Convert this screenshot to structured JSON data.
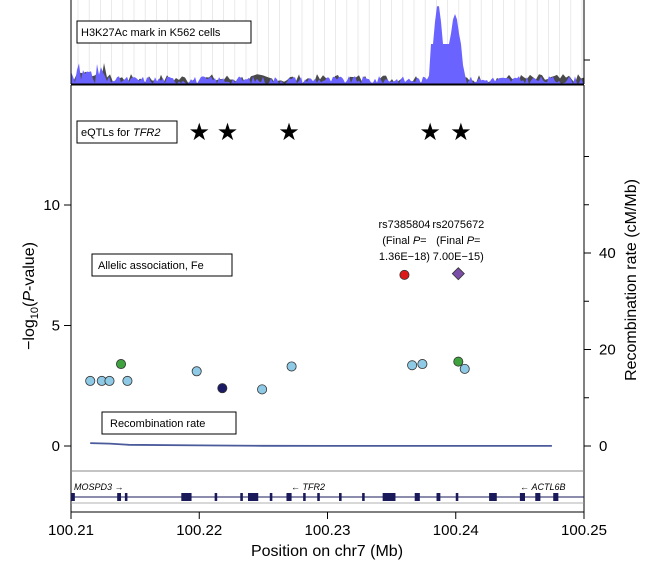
{
  "chart_data": {
    "type": "scatter",
    "xlabel": "Position on chr7 (Mb)",
    "ylabel": [
      "−log",
      "10",
      "(",
      "P",
      "-value)"
    ],
    "y2label": "Recombination rate (cM/Mb)",
    "xlim": [
      100.21,
      100.25
    ],
    "ylim": [
      -1,
      15
    ],
    "y2lim": [
      -5,
      60
    ],
    "x_ticks": [
      "100.21",
      "100.22",
      "100.23",
      "100.24",
      "100.25"
    ],
    "y_ticks": [
      "0",
      "5",
      "10"
    ],
    "y2_ticks": [
      "0",
      "20",
      "40"
    ],
    "panels": {
      "chipseq_label": "H3K27Ac mark in K562 cells",
      "eqtl_label_prefix": "eQTLs for ",
      "eqtl_gene": "TFR2",
      "association_label": "Allelic association, Fe",
      "recombination_label": "Recombination rate"
    },
    "eqtl_positions": [
      100.22,
      100.2222,
      100.227,
      100.238,
      100.2404
    ],
    "series": [
      {
        "name": "SNPs",
        "points": [
          {
            "x": 100.2115,
            "y": 2.7,
            "color": "#8ecae6"
          },
          {
            "x": 100.2124,
            "y": 2.7,
            "color": "#8ecae6"
          },
          {
            "x": 100.213,
            "y": 2.7,
            "color": "#8ecae6"
          },
          {
            "x": 100.2139,
            "y": 3.4,
            "color": "#3ea33e"
          },
          {
            "x": 100.2144,
            "y": 2.7,
            "color": "#8ecae6"
          },
          {
            "x": 100.2198,
            "y": 3.1,
            "color": "#8ecae6"
          },
          {
            "x": 100.2218,
            "y": 2.4,
            "color": "#1a1a66"
          },
          {
            "x": 100.2249,
            "y": 2.35,
            "color": "#8ecae6"
          },
          {
            "x": 100.2272,
            "y": 3.3,
            "color": "#8ecae6"
          },
          {
            "x": 100.2366,
            "y": 3.35,
            "color": "#8ecae6"
          },
          {
            "x": 100.2374,
            "y": 3.4,
            "color": "#8ecae6"
          },
          {
            "x": 100.236,
            "y": 7.1,
            "color": "#dd1a1a"
          },
          {
            "x": 100.2402,
            "y": 7.15,
            "color": "#7b4fa8",
            "shape": "diamond"
          },
          {
            "x": 100.2402,
            "y": 3.5,
            "color": "#3ea33e"
          },
          {
            "x": 100.2407,
            "y": 3.2,
            "color": "#8ecae6"
          }
        ]
      }
    ],
    "annotations": [
      {
        "x": 100.236,
        "line1": "rs7385804",
        "line2a": "(Final ",
        "line2b": "P",
        "line2c": "=",
        "line3": "1.36E−18)"
      },
      {
        "x": 100.2402,
        "line1": "rs2075672",
        "line2a": "(Final ",
        "line2b": "P",
        "line2c": "=",
        "line3": "7.00E−15)"
      }
    ],
    "recombination_rate": {
      "x": [
        100.2115,
        100.213,
        100.2145,
        100.22,
        100.225,
        100.23,
        100.24,
        100.2475
      ],
      "y": [
        0.6,
        0.5,
        0.25,
        0.12,
        0.05,
        0.02,
        0.02,
        0.02
      ]
    },
    "genes": [
      {
        "name": "MOSPD3",
        "dir": "→",
        "start": 100.21,
        "end": 100.2145
      },
      {
        "name": "TFR2",
        "dir": "←",
        "start": 100.2185,
        "end": 100.239
      },
      {
        "name": "ACTL6B",
        "dir": "←",
        "start": 100.24,
        "end": 100.248
      }
    ],
    "colors": {
      "recomb_axis": "#5a4fbf",
      "recomb_line": "#4a5a9a",
      "chipseq": "#6b63ff"
    }
  }
}
